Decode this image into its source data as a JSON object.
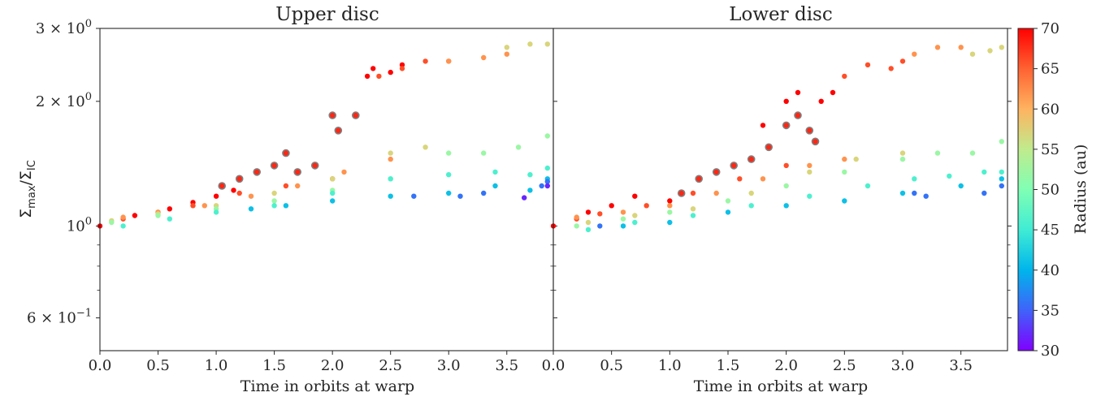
{
  "chart_data": [
    {
      "type": "scatter",
      "title": "Upper disc",
      "xlabel": "Time in orbits at warp",
      "ylabel": "Σmax/ΣIC",
      "yscale": "log",
      "xlim": [
        0,
        3.9
      ],
      "ylim": [
        0.5,
        3.0
      ],
      "x_ticks": [
        "0.0",
        "0.5",
        "1.0",
        "1.5",
        "2.0",
        "2.5",
        "3.0",
        "3.5"
      ],
      "y_ticks": [
        {
          "value": 3,
          "base": "3 × 10",
          "exp": "0"
        },
        {
          "value": 2,
          "base": "2 × 10",
          "exp": "0"
        },
        {
          "value": 1,
          "base": "10",
          "exp": "0"
        },
        {
          "value": 0.6,
          "base": "6 × 10",
          "exp": "−1"
        }
      ],
      "marker_color_by": "radius",
      "highlighted_marker_edge_color": "#7f7f7f",
      "series": [
        {
          "radius": 70,
          "points": [
            [
              0.0,
              1.0
            ],
            [
              0.3,
              1.06
            ],
            [
              0.6,
              1.1
            ],
            [
              0.8,
              1.14
            ],
            [
              1.0,
              1.18
            ],
            [
              1.15,
              1.22
            ],
            [
              2.3,
              2.3
            ],
            [
              2.35,
              2.4
            ],
            [
              2.5,
              2.35
            ],
            [
              2.6,
              2.45
            ]
          ]
        },
        {
          "radius": 68,
          "highlighted": true,
          "points": [
            [
              1.05,
              1.25
            ],
            [
              1.2,
              1.3
            ],
            [
              1.35,
              1.35
            ],
            [
              1.5,
              1.4
            ],
            [
              1.6,
              1.5
            ],
            [
              1.7,
              1.35
            ],
            [
              1.85,
              1.4
            ],
            [
              2.0,
              1.85
            ],
            [
              2.05,
              1.7
            ],
            [
              2.2,
              1.85
            ]
          ]
        },
        {
          "radius": 66,
          "points": [
            [
              0.2,
              1.04
            ],
            [
              0.5,
              1.08
            ],
            [
              0.8,
              1.12
            ],
            [
              1.2,
              1.2
            ],
            [
              1.6,
              1.25
            ],
            [
              2.0,
              1.3
            ],
            [
              2.4,
              2.3
            ],
            [
              2.6,
              2.4
            ],
            [
              2.8,
              2.5
            ],
            [
              3.0,
              2.5
            ]
          ]
        },
        {
          "radius": 62,
          "points": [
            [
              0.2,
              1.05
            ],
            [
              0.5,
              1.08
            ],
            [
              0.9,
              1.12
            ],
            [
              1.3,
              1.18
            ],
            [
              1.7,
              1.25
            ],
            [
              2.1,
              1.35
            ],
            [
              2.5,
              1.45
            ],
            [
              3.0,
              2.5
            ],
            [
              3.3,
              2.55
            ],
            [
              3.5,
              2.6
            ]
          ]
        },
        {
          "radius": 57,
          "points": [
            [
              0.1,
              1.03
            ],
            [
              0.5,
              1.07
            ],
            [
              1.0,
              1.12
            ],
            [
              1.5,
              1.2
            ],
            [
              2.0,
              1.3
            ],
            [
              2.5,
              1.5
            ],
            [
              2.8,
              1.55
            ],
            [
              3.5,
              2.7
            ],
            [
              3.7,
              2.75
            ],
            [
              3.85,
              2.75
            ]
          ]
        },
        {
          "radius": 52,
          "points": [
            [
              0.1,
              1.02
            ],
            [
              0.5,
              1.06
            ],
            [
              1.0,
              1.1
            ],
            [
              1.5,
              1.15
            ],
            [
              2.0,
              1.22
            ],
            [
              2.5,
              1.3
            ],
            [
              3.0,
              1.5
            ],
            [
              3.3,
              1.5
            ],
            [
              3.6,
              1.55
            ],
            [
              3.85,
              1.65
            ]
          ]
        },
        {
          "radius": 46,
          "points": [
            [
              0.2,
              1.0
            ],
            [
              0.6,
              1.04
            ],
            [
              1.0,
              1.08
            ],
            [
              1.5,
              1.12
            ],
            [
              2.0,
              1.2
            ],
            [
              2.5,
              1.3
            ],
            [
              3.0,
              1.33
            ],
            [
              3.4,
              1.35
            ],
            [
              3.7,
              1.33
            ],
            [
              3.85,
              1.38
            ]
          ]
        },
        {
          "radius": 41,
          "points": [
            [
              1.3,
              1.1
            ],
            [
              1.6,
              1.12
            ],
            [
              2.0,
              1.15
            ],
            [
              2.5,
              1.18
            ],
            [
              3.0,
              1.2
            ],
            [
              3.4,
              1.25
            ],
            [
              3.7,
              1.22
            ],
            [
              3.85,
              1.3
            ]
          ]
        },
        {
          "radius": 36,
          "points": [
            [
              2.7,
              1.18
            ],
            [
              3.1,
              1.18
            ],
            [
              3.3,
              1.2
            ],
            [
              3.8,
              1.25
            ],
            [
              3.85,
              1.28
            ]
          ]
        },
        {
          "radius": 32,
          "points": [
            [
              3.65,
              1.17
            ],
            [
              3.85,
              1.25
            ]
          ]
        }
      ]
    },
    {
      "type": "scatter",
      "title": "Lower disc",
      "xlabel": "Time in orbits at warp",
      "yscale": "log",
      "xlim": [
        0,
        3.9
      ],
      "ylim": [
        0.5,
        3.0
      ],
      "x_ticks": [
        "0.0",
        "0.5",
        "1.0",
        "1.5",
        "2.0",
        "2.5",
        "3.0",
        "3.5"
      ],
      "marker_color_by": "radius",
      "highlighted_marker_edge_color": "#7f7f7f",
      "series": [
        {
          "radius": 70,
          "points": [
            [
              0.0,
              1.0
            ],
            [
              0.3,
              1.08
            ],
            [
              0.5,
              1.12
            ],
            [
              0.7,
              1.18
            ],
            [
              1.0,
              1.15
            ],
            [
              1.8,
              1.75
            ],
            [
              2.0,
              2.0
            ],
            [
              2.1,
              2.1
            ],
            [
              2.3,
              2.0
            ],
            [
              2.4,
              2.1
            ]
          ]
        },
        {
          "radius": 68,
          "highlighted": true,
          "points": [
            [
              1.1,
              1.2
            ],
            [
              1.25,
              1.3
            ],
            [
              1.4,
              1.35
            ],
            [
              1.55,
              1.4
            ],
            [
              1.7,
              1.45
            ],
            [
              1.85,
              1.55
            ],
            [
              2.0,
              1.75
            ],
            [
              2.1,
              1.85
            ],
            [
              2.2,
              1.7
            ],
            [
              2.25,
              1.6
            ]
          ]
        },
        {
          "radius": 66,
          "points": [
            [
              0.2,
              1.04
            ],
            [
              0.4,
              1.07
            ],
            [
              0.8,
              1.12
            ],
            [
              1.2,
              1.2
            ],
            [
              1.6,
              1.3
            ],
            [
              2.0,
              1.4
            ],
            [
              2.5,
              2.3
            ],
            [
              2.7,
              2.45
            ],
            [
              2.9,
              2.4
            ],
            [
              3.0,
              2.5
            ]
          ]
        },
        {
          "radius": 62,
          "points": [
            [
              0.2,
              1.05
            ],
            [
              0.6,
              1.08
            ],
            [
              1.0,
              1.12
            ],
            [
              1.4,
              1.2
            ],
            [
              1.8,
              1.3
            ],
            [
              2.2,
              1.4
            ],
            [
              2.5,
              1.45
            ],
            [
              3.1,
              2.6
            ],
            [
              3.3,
              2.7
            ],
            [
              3.5,
              2.7
            ]
          ]
        },
        {
          "radius": 57,
          "points": [
            [
              0.3,
              1.02
            ],
            [
              0.7,
              1.06
            ],
            [
              1.2,
              1.1
            ],
            [
              1.7,
              1.2
            ],
            [
              2.2,
              1.35
            ],
            [
              2.6,
              1.45
            ],
            [
              3.0,
              1.5
            ],
            [
              3.6,
              2.6
            ],
            [
              3.75,
              2.65
            ],
            [
              3.85,
              2.7
            ]
          ]
        },
        {
          "radius": 52,
          "points": [
            [
              0.2,
              1.0
            ],
            [
              0.6,
              1.04
            ],
            [
              1.0,
              1.08
            ],
            [
              1.5,
              1.15
            ],
            [
              2.0,
              1.25
            ],
            [
              2.5,
              1.35
            ],
            [
              3.0,
              1.45
            ],
            [
              3.3,
              1.5
            ],
            [
              3.6,
              1.5
            ],
            [
              3.85,
              1.6
            ]
          ]
        },
        {
          "radius": 46,
          "points": [
            [
              0.3,
              0.98
            ],
            [
              0.7,
              1.02
            ],
            [
              1.2,
              1.06
            ],
            [
              1.7,
              1.12
            ],
            [
              2.2,
              1.18
            ],
            [
              2.7,
              1.25
            ],
            [
              3.1,
              1.3
            ],
            [
              3.4,
              1.32
            ],
            [
              3.7,
              1.35
            ],
            [
              3.85,
              1.35
            ]
          ]
        },
        {
          "radius": 41,
          "points": [
            [
              0.6,
              1.0
            ],
            [
              1.0,
              1.02
            ],
            [
              1.5,
              1.08
            ],
            [
              2.0,
              1.12
            ],
            [
              2.5,
              1.15
            ],
            [
              3.0,
              1.2
            ],
            [
              3.5,
              1.25
            ],
            [
              3.85,
              1.3
            ]
          ]
        },
        {
          "radius": 36,
          "points": [
            [
              0.4,
              1.0
            ],
            [
              3.1,
              1.2
            ],
            [
              3.2,
              1.18
            ],
            [
              3.7,
              1.2
            ],
            [
              3.85,
              1.25
            ]
          ]
        }
      ]
    }
  ],
  "colorbar": {
    "label": "Radius (au)",
    "min": 30,
    "max": 70,
    "ticks": [
      "30",
      "35",
      "40",
      "45",
      "50",
      "55",
      "60",
      "65",
      "70"
    ]
  }
}
